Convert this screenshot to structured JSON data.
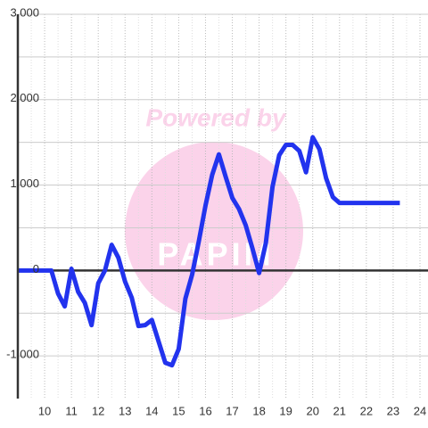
{
  "chart_data": {
    "type": "line",
    "watermark": [
      "Powered by",
      "PAPIM"
    ],
    "x": [
      9,
      10.25,
      10.5,
      10.75,
      11,
      11.25,
      11.5,
      11.75,
      12,
      12.25,
      12.5,
      12.75,
      13,
      13.25,
      13.5,
      13.75,
      14,
      14.25,
      14.5,
      14.75,
      15,
      15.25,
      15.5,
      15.75,
      16,
      16.25,
      16.5,
      16.75,
      17,
      17.25,
      17.5,
      17.75,
      18,
      18.25,
      18.5,
      18.75,
      19,
      19.25,
      19.5,
      19.75,
      20,
      20.25,
      20.5,
      20.75,
      21,
      23.25
    ],
    "series": [
      {
        "color": "#2233ee",
        "values": [
          0,
          0,
          -270,
          -420,
          20,
          -250,
          -380,
          -640,
          -150,
          0,
          300,
          150,
          -130,
          -320,
          -650,
          -640,
          -580,
          -830,
          -1080,
          -1110,
          -920,
          -330,
          -50,
          340,
          760,
          1120,
          1360,
          1100,
          850,
          720,
          530,
          260,
          -30,
          320,
          980,
          1350,
          1470,
          1470,
          1400,
          1150,
          1560,
          1420,
          1080,
          860,
          790,
          790
        ]
      }
    ],
    "xlim": [
      9,
      24.3
    ],
    "xticks": [
      10,
      11,
      12,
      13,
      14,
      15,
      16,
      17,
      18,
      19,
      20,
      21,
      22,
      23,
      24
    ],
    "ylim": [
      -1500,
      3000
    ],
    "yticks": [
      {
        "value": -1000,
        "label": "-1,000"
      },
      0,
      {
        "value": 1000,
        "label": "1,000"
      },
      {
        "value": 2000,
        "label": "2,000"
      },
      {
        "value": 3000,
        "label": "3,000"
      }
    ],
    "yminor": [
      -500,
      500,
      1500,
      2500
    ],
    "grid": true
  }
}
